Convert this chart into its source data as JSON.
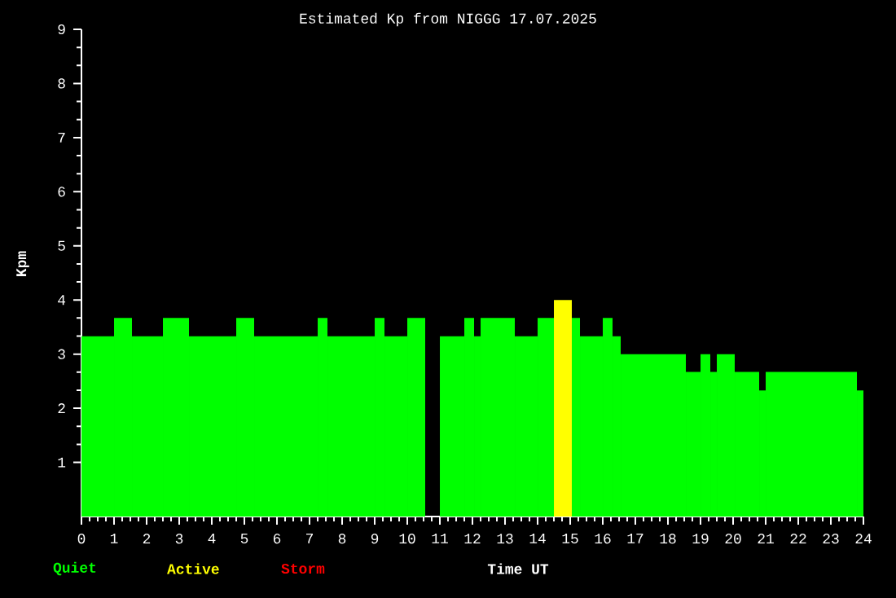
{
  "chart_data": {
    "type": "histogram",
    "title": "Estimated Kp from NIGGG 17.07.2025",
    "xlabel": "Time UT",
    "ylabel": "Kpm",
    "bins": [
      0,
      1.0,
      1.55,
      2.5,
      3.3,
      4.75,
      5.3,
      7.25,
      7.55,
      9.0,
      9.3,
      10.0,
      10.55,
      11.0,
      11.75,
      12.05,
      12.25,
      13.3,
      14.0,
      14.5,
      15.05,
      15.3,
      16.0,
      16.3,
      16.55,
      18.55,
      19.0,
      19.3,
      19.5,
      20.05,
      20.8,
      21.0,
      23.8,
      24.0
    ],
    "series": [
      {
        "name": "Quiet",
        "color": "#00ff00",
        "values": [
          3.33,
          3.67,
          3.33,
          3.67,
          3.33,
          3.67,
          3.33,
          3.67,
          3.33,
          3.67,
          3.33,
          3.67,
          null,
          3.33,
          3.67,
          3.33,
          3.67,
          3.33,
          3.67,
          null,
          3.67,
          3.33,
          3.67,
          3.33,
          3.0,
          2.67,
          3.0,
          2.67,
          3.0,
          2.67,
          2.33,
          2.67,
          2.33
        ]
      },
      {
        "name": "Active",
        "color": "#ffff00",
        "values": [
          null,
          null,
          null,
          null,
          null,
          null,
          null,
          null,
          null,
          null,
          null,
          null,
          null,
          null,
          null,
          null,
          null,
          null,
          null,
          4.0,
          null,
          null,
          null,
          null,
          null,
          null,
          null,
          null,
          null,
          null,
          null,
          null,
          null
        ]
      }
    ],
    "annotations": [
      "Storm"
    ],
    "xlim": [
      0,
      24
    ],
    "xticks": [
      0,
      1,
      2,
      3,
      4,
      5,
      6,
      7,
      8,
      9,
      10,
      11,
      12,
      13,
      14,
      15,
      16,
      17,
      18,
      19,
      20,
      21,
      22,
      23,
      24
    ],
    "ylim": [
      0,
      9
    ],
    "yticks": [
      1,
      2,
      3,
      4,
      5,
      6,
      7,
      8,
      9
    ],
    "legend": "bottom left"
  }
}
